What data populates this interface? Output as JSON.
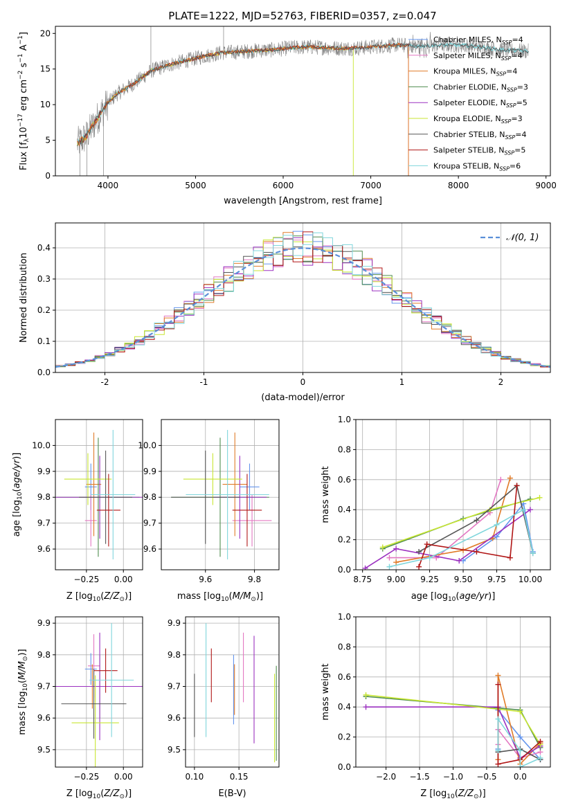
{
  "colors": {
    "chabrier_miles": "#6495ED",
    "salpeter_miles": "#E377C2",
    "kroupa_miles": "#E07B28",
    "chabrier_elodie": "#4E8C4E",
    "salpeter_elodie": "#9B30C0",
    "kroupa_elodie": "#C8E632",
    "chabrier_stelib": "#555555",
    "salpeter_stelib": "#B01515",
    "kroupa_stelib": "#7FD6DC",
    "normal": "#5A8FD8"
  },
  "chart_data": [
    {
      "id": "spectrum",
      "type": "line",
      "title": "PLATE=1222, MJD=52763, FIBERID=0357, z=0.047",
      "xlabel": "wavelength [Angstrom, rest frame]",
      "ylabel": "Flux [f_λ10^-17 erg cm^-2 s^-1 A^-1]",
      "xlim": [
        3400,
        9050
      ],
      "ylim": [
        0,
        21
      ],
      "xticks": [
        4000,
        5000,
        6000,
        7000,
        8000,
        9000
      ],
      "yticks": [
        0,
        5,
        10,
        15,
        20
      ],
      "legend_position": "upper-right",
      "legend": [
        {
          "name": "Chabrier MILES, N_SSP=4",
          "key": "chabrier_miles"
        },
        {
          "name": "Salpeter MILES, N_SSP=4",
          "key": "salpeter_miles"
        },
        {
          "name": "Kroupa MILES, N_SSP=4",
          "key": "kroupa_miles"
        },
        {
          "name": "Chabrier ELODIE, N_SSP=3",
          "key": "chabrier_elodie"
        },
        {
          "name": "Salpeter ELODIE, N_SSP=5",
          "key": "salpeter_elodie"
        },
        {
          "name": "Kroupa ELODIE, N_SSP=3",
          "key": "kroupa_elodie"
        },
        {
          "name": "Chabrier STELIB, N_SSP=4",
          "key": "chabrier_stelib"
        },
        {
          "name": "Salpeter STELIB, N_SSP=5",
          "key": "salpeter_stelib"
        },
        {
          "name": "Kroupa STELIB, N_SSP=6",
          "key": "kroupa_stelib"
        }
      ],
      "continuum": {
        "x": [
          3650,
          3750,
          3900,
          4000,
          4100,
          4300,
          4500,
          4700,
          4900,
          5100,
          5300,
          5500,
          5700,
          5900,
          6100,
          6300,
          6500,
          6700,
          6900,
          7100,
          7300,
          7500,
          7700,
          7900,
          8100,
          8300,
          8500,
          8800
        ],
        "y": [
          4.5,
          5.5,
          8.5,
          10.2,
          11.5,
          13.0,
          14.8,
          15.6,
          16.2,
          16.8,
          17.3,
          17.4,
          17.6,
          17.7,
          18.0,
          18.1,
          18.0,
          17.9,
          18.0,
          18.2,
          18.4,
          18.2,
          18.3,
          18.4,
          18.3,
          18.0,
          17.7,
          17.5
        ]
      },
      "noise_amplitude": 1.1,
      "model_ranges": {
        "kroupa_elodie": [
          3650,
          6800
        ],
        "kroupa_stelib": [
          3650,
          8800
        ],
        "salpeter_stelib": [
          3650,
          7430
        ],
        "kroupa_miles": [
          3650,
          7430
        ],
        "chabrier_stelib": [
          3650,
          8800
        ]
      }
    },
    {
      "id": "residuals",
      "type": "histogram",
      "xlabel": "(data-model)/error",
      "ylabel": "Normed distribution",
      "xlim": [
        -2.5,
        2.5
      ],
      "ylim": [
        0,
        0.48
      ],
      "xticks": [
        -2,
        -1,
        0,
        1,
        2
      ],
      "yticks": [
        0.0,
        0.1,
        0.2,
        0.3,
        0.4
      ],
      "bin_width": 0.1,
      "bin_range": [
        -2.5,
        2.5
      ],
      "legend_position": "upper-right",
      "reference_curve": {
        "name": "𝒩(0, 1)",
        "key": "normal",
        "style": "dashed"
      }
    },
    {
      "id": "age_vs_Z",
      "type": "scatter_errorbar",
      "xlabel": "Z [log10(Z/Z⊙)]",
      "ylabel": "age  [log10(age/yr)]",
      "xlim": [
        -0.46,
        0.13
      ],
      "ylim": [
        9.52,
        10.1
      ],
      "xticks": [
        -0.25,
        0.0
      ],
      "xticklabels": [
        "−0.25",
        "0.00"
      ],
      "yticks": [
        9.6,
        9.7,
        9.8,
        9.9,
        10.0
      ],
      "points": [
        {
          "key": "chabrier_miles",
          "x": -0.22,
          "y": 9.84,
          "xerr": 0.04,
          "yerr": 0.09
        },
        {
          "key": "salpeter_miles",
          "x": -0.22,
          "y": 9.71,
          "xerr": 0.04,
          "yerr": 0.1
        },
        {
          "key": "kroupa_miles",
          "x": -0.2,
          "y": 9.85,
          "xerr": 0.05,
          "yerr": 0.2
        },
        {
          "key": "chabrier_elodie",
          "x": -0.17,
          "y": 9.8,
          "xerr": 0.28,
          "yerr": 0.23
        },
        {
          "key": "salpeter_elodie",
          "x": -0.16,
          "y": 9.8,
          "xerr": 0.3,
          "yerr": 0.16
        },
        {
          "key": "kroupa_elodie",
          "x": -0.24,
          "y": 9.87,
          "xerr": 0.16,
          "yerr": 0.1
        },
        {
          "key": "chabrier_stelib",
          "x": -0.12,
          "y": 9.8,
          "xerr": 0.18,
          "yerr": 0.18
        },
        {
          "key": "salpeter_stelib",
          "x": -0.1,
          "y": 9.75,
          "xerr": 0.08,
          "yerr": 0.14
        },
        {
          "key": "kroupa_stelib",
          "x": -0.07,
          "y": 9.81,
          "xerr": 0.15,
          "yerr": 0.25
        }
      ]
    },
    {
      "id": "age_vs_mass",
      "type": "scatter_errorbar",
      "xlabel": "mass [log10(M/M⊙)]",
      "ylabel": "",
      "xlim": [
        9.42,
        9.9
      ],
      "ylim": [
        9.52,
        10.1
      ],
      "xticks": [
        9.6,
        9.8
      ],
      "yticks": [
        9.6,
        9.7,
        9.8,
        9.9,
        10.0
      ],
      "points": [
        {
          "key": "chabrier_miles",
          "x": 9.78,
          "y": 9.84,
          "xerr": 0.04,
          "yerr": 0.09
        },
        {
          "key": "salpeter_miles",
          "x": 9.79,
          "y": 9.71,
          "xerr": 0.08,
          "yerr": 0.1
        },
        {
          "key": "kroupa_miles",
          "x": 9.72,
          "y": 9.85,
          "xerr": 0.05,
          "yerr": 0.2
        },
        {
          "key": "chabrier_elodie",
          "x": 9.66,
          "y": 9.8,
          "xerr": 0.2,
          "yerr": 0.23
        },
        {
          "key": "salpeter_elodie",
          "x": 9.74,
          "y": 9.8,
          "xerr": 0.11,
          "yerr": 0.16
        },
        {
          "key": "kroupa_elodie",
          "x": 9.63,
          "y": 9.87,
          "xerr": 0.12,
          "yerr": 0.1
        },
        {
          "key": "chabrier_stelib",
          "x": 9.6,
          "y": 9.8,
          "xerr": 0.14,
          "yerr": 0.18
        },
        {
          "key": "salpeter_stelib",
          "x": 9.77,
          "y": 9.75,
          "xerr": 0.06,
          "yerr": 0.14
        },
        {
          "key": "kroupa_stelib",
          "x": 9.69,
          "y": 9.81,
          "xerr": 0.17,
          "yerr": 0.25
        }
      ]
    },
    {
      "id": "weight_vs_age",
      "type": "line",
      "xlabel": "age  [log10(age/yr)]",
      "ylabel": "mass weight",
      "xlim": [
        8.7,
        10.15
      ],
      "ylim": [
        0,
        1.0
      ],
      "xticks": [
        8.75,
        9.0,
        9.25,
        9.5,
        9.75,
        10.0
      ],
      "xticklabels": [
        "8.75",
        "9.00",
        "9.25",
        "9.50",
        "9.75",
        "10.00"
      ],
      "yticks": [
        0.0,
        0.2,
        0.4,
        0.6,
        0.8,
        1.0
      ],
      "series": [
        {
          "key": "chabrier_miles",
          "x": [
            9.5,
            9.75,
            9.95,
            10.02
          ],
          "y": [
            0.06,
            0.22,
            0.44,
            0.12
          ]
        },
        {
          "key": "salpeter_miles",
          "x": [
            8.95,
            9.3,
            9.7,
            9.78
          ],
          "y": [
            0.08,
            0.08,
            0.38,
            0.6
          ]
        },
        {
          "key": "kroupa_miles",
          "x": [
            9.0,
            9.5,
            9.72,
            9.85
          ],
          "y": [
            0.05,
            0.13,
            0.21,
            0.61
          ]
        },
        {
          "key": "chabrier_elodie",
          "x": [
            8.9,
            9.5,
            10.0
          ],
          "y": [
            0.14,
            0.34,
            0.47
          ]
        },
        {
          "key": "salpeter_elodie",
          "x": [
            8.77,
            9.0,
            9.47,
            10.0
          ],
          "y": [
            0.01,
            0.14,
            0.06,
            0.4
          ]
        },
        {
          "key": "kroupa_elodie",
          "x": [
            8.9,
            9.7,
            10.07
          ],
          "y": [
            0.15,
            0.4,
            0.48
          ]
        },
        {
          "key": "chabrier_stelib",
          "x": [
            9.17,
            9.6,
            9.9,
            10.02
          ],
          "y": [
            0.12,
            0.33,
            0.56,
            0.11
          ]
        },
        {
          "key": "salpeter_stelib",
          "x": [
            9.17,
            9.23,
            9.6,
            9.85,
            9.9
          ],
          "y": [
            0.02,
            0.17,
            0.12,
            0.08,
            0.56
          ]
        },
        {
          "key": "kroupa_stelib",
          "x": [
            8.95,
            9.25,
            9.75,
            9.95,
            10.02
          ],
          "y": [
            0.02,
            0.08,
            0.3,
            0.4,
            0.11
          ]
        }
      ]
    },
    {
      "id": "mass_vs_Z",
      "type": "scatter_errorbar",
      "xlabel": "Z [log10(Z/Z⊙)]",
      "ylabel": "mass [log10(M/M⊙)]",
      "xlim": [
        -0.46,
        0.13
      ],
      "ylim": [
        9.445,
        9.92
      ],
      "xticks": [
        -0.25,
        0.0
      ],
      "xticklabels": [
        "−0.25",
        "0.00"
      ],
      "yticks": [
        9.5,
        9.6,
        9.7,
        9.8,
        9.9
      ],
      "points": [
        {
          "key": "chabrier_miles",
          "x": -0.22,
          "y": 9.755,
          "xerr": 0.04,
          "yerr": 0.05
        },
        {
          "key": "salpeter_miles",
          "x": -0.2,
          "y": 9.765,
          "xerr": 0.04,
          "yerr": 0.1
        },
        {
          "key": "kroupa_miles",
          "x": -0.21,
          "y": 9.7,
          "xerr": 0.05,
          "yerr": 0.07
        },
        {
          "key": "chabrier_elodie",
          "x": -0.16,
          "y": 9.7,
          "xerr": 0.28,
          "yerr": 0.1
        },
        {
          "key": "salpeter_elodie",
          "x": -0.16,
          "y": 9.7,
          "xerr": 0.3,
          "yerr": 0.17
        },
        {
          "key": "kroupa_elodie",
          "x": -0.19,
          "y": 9.585,
          "xerr": 0.16,
          "yerr": 0.15
        },
        {
          "key": "chabrier_stelib",
          "x": -0.2,
          "y": 9.645,
          "xerr": 0.22,
          "yerr": 0.11
        },
        {
          "key": "salpeter_stelib",
          "x": -0.12,
          "y": 9.75,
          "xerr": 0.08,
          "yerr": 0.07
        },
        {
          "key": "kroupa_stelib",
          "x": -0.08,
          "y": 9.72,
          "xerr": 0.15,
          "yerr": 0.18
        }
      ]
    },
    {
      "id": "mass_vs_ebv",
      "type": "scatter_errorbar",
      "xlabel": "E(B-V)",
      "ylabel": "",
      "xlim": [
        0.09,
        0.195
      ],
      "ylim": [
        9.445,
        9.92
      ],
      "xticks": [
        0.1,
        0.15
      ],
      "xticklabels": [
        "0.10",
        "0.15"
      ],
      "yticks": [
        9.5,
        9.6,
        9.7,
        9.8,
        9.9
      ],
      "points": [
        {
          "key": "chabrier_stelib",
          "x": 0.1,
          "y": 9.64,
          "xerr": 0,
          "yerr": 0.1
        },
        {
          "key": "kroupa_stelib",
          "x": 0.113,
          "y": 9.72,
          "xerr": 0,
          "yerr": 0.18
        },
        {
          "key": "salpeter_stelib",
          "x": 0.119,
          "y": 9.735,
          "xerr": 0,
          "yerr": 0.085
        },
        {
          "key": "chabrier_miles",
          "x": 0.144,
          "y": 9.69,
          "xerr": 0,
          "yerr": 0.11
        },
        {
          "key": "kroupa_miles",
          "x": 0.145,
          "y": 9.69,
          "xerr": 0,
          "yerr": 0.08
        },
        {
          "key": "salpeter_miles",
          "x": 0.155,
          "y": 9.76,
          "xerr": 0,
          "yerr": 0.11
        },
        {
          "key": "salpeter_elodie",
          "x": 0.167,
          "y": 9.69,
          "xerr": 0,
          "yerr": 0.17
        },
        {
          "key": "kroupa_elodie",
          "x": 0.19,
          "y": 9.6,
          "xerr": 0,
          "yerr": 0.14
        },
        {
          "key": "chabrier_elodie",
          "x": 0.192,
          "y": 9.615,
          "xerr": 0,
          "yerr": 0.15
        }
      ]
    },
    {
      "id": "weight_vs_Z",
      "type": "line",
      "xlabel": "Z [log10(Z/Z⊙)]",
      "ylabel": "mass weight",
      "xlim": [
        -2.45,
        0.45
      ],
      "ylim": [
        0,
        1.0
      ],
      "xticks": [
        -2.0,
        -1.5,
        -1.0,
        -0.5,
        0.0
      ],
      "xticklabels": [
        "−2.0",
        "−1.5",
        "−1.0",
        "−0.5",
        "0.0"
      ],
      "yticks": [
        0.0,
        0.2,
        0.4,
        0.6,
        0.8,
        1.0
      ],
      "series": [
        {
          "key": "chabrier_miles",
          "x": [
            -0.33,
            -0.33,
            0.0,
            0.3
          ],
          "y": [
            0.12,
            0.38,
            0.2,
            0.05
          ]
        },
        {
          "key": "salpeter_miles",
          "x": [
            -0.33,
            -0.33,
            0.0,
            0.3
          ],
          "y": [
            0.15,
            0.25,
            0.06,
            0.1
          ]
        },
        {
          "key": "kroupa_miles",
          "x": [
            -0.33,
            -0.33,
            0.0,
            0.3
          ],
          "y": [
            0.05,
            0.61,
            0.02,
            0.16
          ]
        },
        {
          "key": "chabrier_elodie",
          "x": [
            -2.3,
            0.0,
            0.3
          ],
          "y": [
            0.47,
            0.38,
            0.13
          ]
        },
        {
          "key": "salpeter_elodie",
          "x": [
            -2.3,
            -0.33,
            0.0,
            0.3
          ],
          "y": [
            0.4,
            0.4,
            0.06,
            0.14
          ]
        },
        {
          "key": "kroupa_elodie",
          "x": [
            -2.3,
            0.0,
            0.3
          ],
          "y": [
            0.48,
            0.37,
            0.15
          ]
        },
        {
          "key": "chabrier_stelib",
          "x": [
            -0.33,
            0.0,
            0.3
          ],
          "y": [
            0.1,
            0.12,
            0.05
          ]
        },
        {
          "key": "salpeter_stelib",
          "x": [
            -0.33,
            -0.33,
            0.0,
            0.3
          ],
          "y": [
            0.55,
            0.02,
            0.05,
            0.17
          ]
        },
        {
          "key": "kroupa_stelib",
          "x": [
            -0.33,
            -0.33,
            0.0,
            0.0,
            0.3
          ],
          "y": [
            0.11,
            0.32,
            0.11,
            0.0,
            0.06
          ]
        }
      ]
    }
  ]
}
